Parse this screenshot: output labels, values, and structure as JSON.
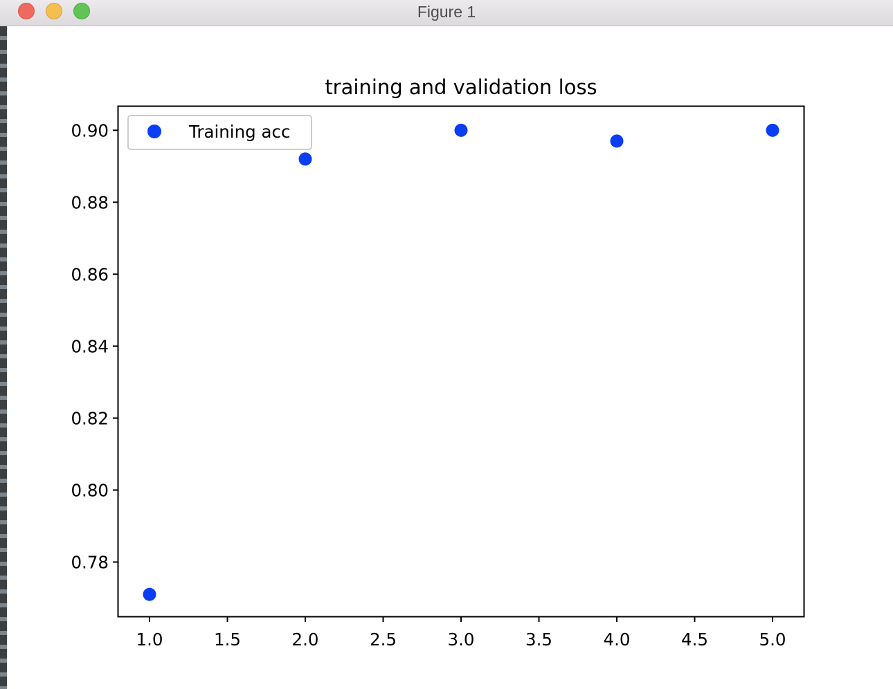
{
  "window": {
    "title": "Figure 1",
    "buttons": [
      "close",
      "minimize",
      "zoom"
    ]
  },
  "chart_data": {
    "type": "scatter",
    "title": "training and validation loss",
    "xlabel": "",
    "ylabel": "",
    "x": [
      1.0,
      2.0,
      3.0,
      4.0,
      5.0
    ],
    "series": [
      {
        "name": "Training acc",
        "color": "#0b3df5",
        "marker": "circle",
        "values": [
          0.771,
          0.892,
          0.9,
          0.897,
          0.9
        ]
      }
    ],
    "xlim": [
      0.8,
      5.2
    ],
    "ylim": [
      0.7649,
      0.9066
    ],
    "xticks": [
      "1.0",
      "1.5",
      "2.0",
      "2.5",
      "3.0",
      "3.5",
      "4.0",
      "4.5",
      "5.0"
    ],
    "yticks": [
      "0.78",
      "0.80",
      "0.82",
      "0.84",
      "0.86",
      "0.88",
      "0.90"
    ],
    "grid": false,
    "legend_position": "upper-left"
  }
}
